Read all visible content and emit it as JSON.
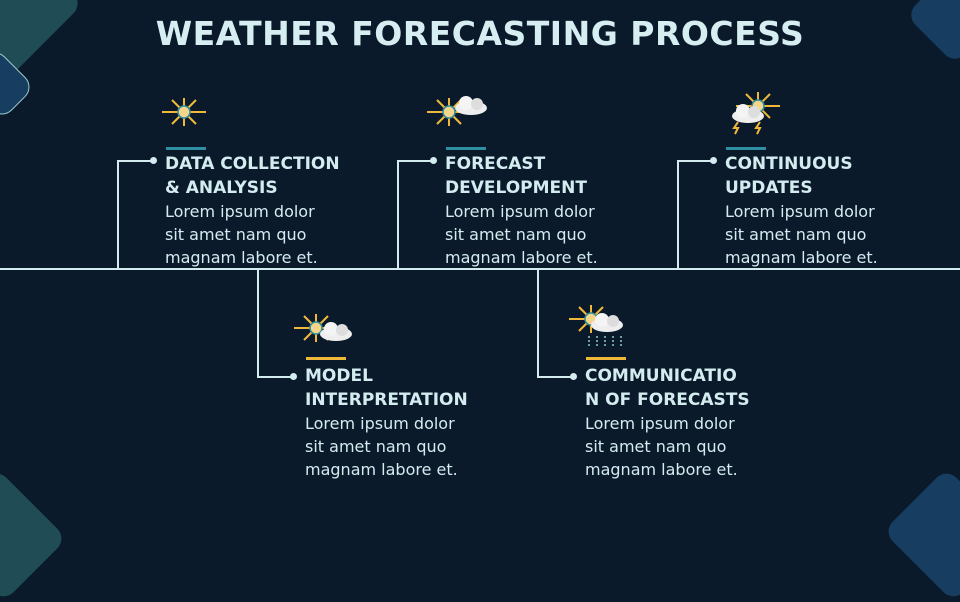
{
  "title": "WEATHER FORECASTING PROCESS",
  "colors": {
    "background": "#0b1a2a",
    "text": "#d3ecf0",
    "accent_top": "#2e8fa0",
    "accent_bottom": "#f0b83a"
  },
  "steps": [
    {
      "title_line1": "DATA COLLECTION",
      "title_line2": "& ANALYSIS",
      "body": [
        "Lorem ipsum dolor",
        "sit amet nam quo",
        "magnam labore et."
      ],
      "icon": "sun-icon"
    },
    {
      "title_line1": "MODEL",
      "title_line2": "INTERPRETATION",
      "body": [
        "Lorem ipsum dolor",
        "sit amet nam quo",
        "magnam labore et."
      ],
      "icon": "sun-cloud-icon"
    },
    {
      "title_line1": "FORECAST",
      "title_line2": "DEVELOPMENT",
      "body": [
        "Lorem ipsum dolor",
        "sit amet nam quo",
        "magnam labore et."
      ],
      "icon": "sun-cloud-icon"
    },
    {
      "title_line1": "COMMUNICATIO",
      "title_line2": "N OF FORECASTS",
      "body": [
        "Lorem ipsum dolor",
        "sit amet nam quo",
        "magnam labore et."
      ],
      "icon": "sun-cloud-rain-icon"
    },
    {
      "title_line1": "CONTINUOUS",
      "title_line2": "UPDATES",
      "body": [
        "Lorem ipsum dolor",
        "sit amet nam quo",
        "magnam labore et."
      ],
      "icon": "sun-cloud-storm-icon"
    }
  ]
}
